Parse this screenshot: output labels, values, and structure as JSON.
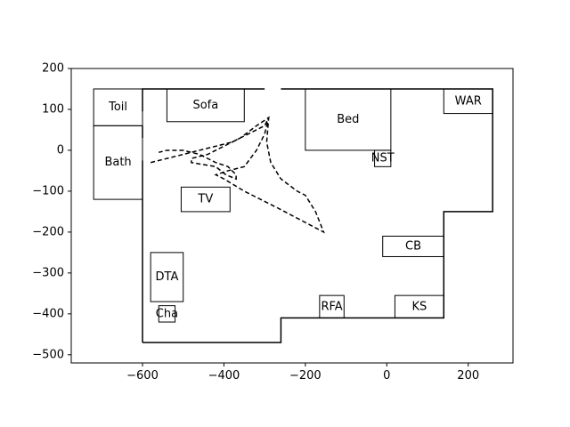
{
  "chart_data": {
    "type": "floorplan",
    "title": "",
    "xlabel": "",
    "ylabel": "",
    "xlim": [
      -775,
      310
    ],
    "ylim": [
      -520,
      200
    ],
    "grid": false,
    "xticks": [
      {
        "value": -600,
        "label": "−600"
      },
      {
        "value": -400,
        "label": "−400"
      },
      {
        "value": -200,
        "label": "−200"
      },
      {
        "value": 0,
        "label": "0"
      },
      {
        "value": 200,
        "label": "200"
      }
    ],
    "yticks": [
      {
        "value": 200,
        "label": "200"
      },
      {
        "value": 100,
        "label": "100"
      },
      {
        "value": 0,
        "label": "0"
      },
      {
        "value": -100,
        "label": "−100"
      },
      {
        "value": -200,
        "label": "−200"
      },
      {
        "value": -300,
        "label": "−300"
      },
      {
        "value": -400,
        "label": "−400"
      },
      {
        "value": -500,
        "label": "−500"
      }
    ],
    "walls": [
      [
        [
          -600,
          -470
        ],
        [
          -600,
          150
        ],
        [
          -300,
          150
        ]
      ],
      [
        [
          -260,
          150
        ],
        [
          260,
          150
        ],
        [
          260,
          -150
        ],
        [
          140,
          -150
        ],
        [
          140,
          -410
        ],
        [
          -260,
          -410
        ],
        [
          -260,
          -470
        ],
        [
          -600,
          -470
        ]
      ]
    ],
    "wall_gaps": [
      [
        [
          -600,
          -25
        ],
        [
          -600,
          30
        ]
      ],
      [
        [
          -600,
          60
        ],
        [
          -600,
          95
        ]
      ]
    ],
    "rooms": [
      {
        "label": "Toil",
        "x0": -720,
        "y0": 60,
        "x1": -600,
        "y1": 150
      },
      {
        "label": "Bath",
        "x0": -720,
        "y0": -120,
        "x1": -600,
        "y1": 60
      },
      {
        "label": "Sofa",
        "x0": -540,
        "y0": 70,
        "x1": -350,
        "y1": 150
      },
      {
        "label": "Bed",
        "x0": -200,
        "y0": 0,
        "x1": 10,
        "y1": 150
      },
      {
        "label": "NST",
        "x0": -30,
        "y0": -40,
        "x1": 10,
        "y1": 0
      },
      {
        "label": "WAR",
        "x0": 140,
        "y0": 90,
        "x1": 260,
        "y1": 150
      },
      {
        "label": "TV",
        "x0": -505,
        "y0": -150,
        "x1": -385,
        "y1": -90
      },
      {
        "label": "CB",
        "x0": -10,
        "y0": -260,
        "x1": 140,
        "y1": -210
      },
      {
        "label": "DTA",
        "x0": -580,
        "y0": -370,
        "x1": -500,
        "y1": -250
      },
      {
        "label": "Cha",
        "x0": -560,
        "y0": -420,
        "x1": -520,
        "y1": -380
      },
      {
        "label": "RFA",
        "x0": -165,
        "y0": -410,
        "x1": -105,
        "y1": -355
      },
      {
        "label": "KS",
        "x0": 20,
        "y0": -410,
        "x1": 140,
        "y1": -355
      }
    ],
    "path": [
      [
        -580,
        -30
      ],
      [
        -500,
        -10
      ],
      [
        -420,
        10
      ],
      [
        -380,
        20
      ],
      [
        -340,
        40
      ],
      [
        -300,
        60
      ],
      [
        -290,
        80
      ],
      [
        -295,
        20
      ],
      [
        -285,
        -30
      ],
      [
        -260,
        -70
      ],
      [
        -220,
        -100
      ],
      [
        -200,
        -110
      ],
      [
        -175,
        -150
      ],
      [
        -155,
        -200
      ],
      [
        -270,
        -140
      ],
      [
        -350,
        -100
      ],
      [
        -400,
        -70
      ],
      [
        -420,
        -60
      ],
      [
        -390,
        -50
      ],
      [
        -350,
        -40
      ],
      [
        -320,
        0
      ],
      [
        -300,
        40
      ],
      [
        -290,
        80
      ],
      [
        -320,
        60
      ],
      [
        -360,
        30
      ],
      [
        -400,
        10
      ],
      [
        -440,
        -10
      ],
      [
        -480,
        -20
      ],
      [
        -480,
        -30
      ],
      [
        -420,
        -40
      ],
      [
        -395,
        -60
      ],
      [
        -370,
        -70
      ],
      [
        -370,
        -60
      ],
      [
        -390,
        -40
      ],
      [
        -420,
        -30
      ],
      [
        -460,
        -10
      ],
      [
        -500,
        0
      ],
      [
        -540,
        0
      ],
      [
        -560,
        -5
      ]
    ]
  }
}
